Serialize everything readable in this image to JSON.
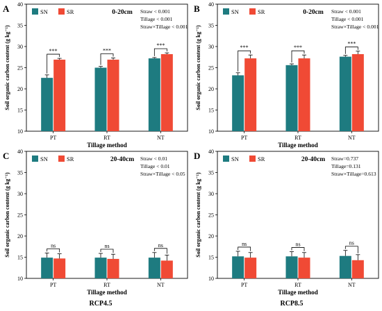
{
  "figure": {
    "footer_left": "RCP4.5",
    "footer_right": "RCP8.5"
  },
  "colors": {
    "SN": "#1e7b80",
    "SR": "#f04a35"
  },
  "chart_data": [
    {
      "panel": "A",
      "type": "bar",
      "depth_label": "0-20cm",
      "stats": [
        "Straw < 0.001",
        "Tillage < 0.001",
        "Straw×Tillage < 0.001"
      ],
      "categories": [
        "PT",
        "RT",
        "NT"
      ],
      "series": [
        {
          "name": "SN",
          "values": [
            22.6,
            25.0,
            27.2
          ],
          "errors": [
            0.7,
            0.3,
            0.2
          ]
        },
        {
          "name": "SR",
          "values": [
            26.9,
            26.9,
            28.2
          ],
          "errors": [
            0.3,
            0.4,
            0.3
          ]
        }
      ],
      "significance": [
        "***",
        "***",
        "***"
      ],
      "xlabel": "Tillage method",
      "ylabel": "Soil organic carbon content (g kg⁻¹)",
      "ylim": [
        10,
        40
      ],
      "yticks": [
        10,
        15,
        20,
        25,
        30,
        35,
        40
      ],
      "legend": "top-left",
      "grid": false
    },
    {
      "panel": "B",
      "type": "bar",
      "depth_label": "0-20cm",
      "stats": [
        "Straw < 0.001",
        "Tillage < 0.001",
        "Straw×Tillage < 0.001"
      ],
      "categories": [
        "PT",
        "RT",
        "NT"
      ],
      "series": [
        {
          "name": "SN",
          "values": [
            23.2,
            25.6,
            27.6
          ],
          "errors": [
            0.6,
            0.3,
            0.3
          ]
        },
        {
          "name": "SR",
          "values": [
            27.2,
            27.2,
            28.2
          ],
          "errors": [
            0.8,
            0.8,
            0.7
          ]
        }
      ],
      "significance": [
        "***",
        "***",
        "***"
      ],
      "xlabel": "Tillage method",
      "ylabel": "Soil organic carbon content (g kg⁻¹)",
      "ylim": [
        10,
        40
      ],
      "yticks": [
        10,
        15,
        20,
        25,
        30,
        35,
        40
      ],
      "legend": "top-left",
      "grid": false
    },
    {
      "panel": "C",
      "type": "bar",
      "depth_label": "20-40cm",
      "stats": [
        "Straw < 0.01",
        "Tillage < 0.01",
        "Straw×Tillage < 0.05"
      ],
      "categories": [
        "PT",
        "RT",
        "NT"
      ],
      "series": [
        {
          "name": "SN",
          "values": [
            14.9,
            14.9,
            14.9
          ],
          "errors": [
            1.1,
            1.0,
            1.2
          ]
        },
        {
          "name": "SR",
          "values": [
            14.7,
            14.6,
            14.2
          ],
          "errors": [
            1.1,
            1.1,
            1.3
          ]
        }
      ],
      "significance": [
        "ns",
        "ns",
        "ns"
      ],
      "xlabel": "Tillage method",
      "ylabel": "Soil organic carbon content (g kg⁻¹)",
      "ylim": [
        10,
        40
      ],
      "yticks": [
        10,
        15,
        20,
        25,
        30,
        35,
        40
      ],
      "legend": "top-left",
      "grid": false
    },
    {
      "panel": "D",
      "type": "bar",
      "depth_label": "20-40cm",
      "stats": [
        "Straw=0.737",
        "Tillage=0.131",
        "Straw×Tillage=0.613"
      ],
      "categories": [
        "PT",
        "RT",
        "NT"
      ],
      "series": [
        {
          "name": "SN",
          "values": [
            15.2,
            15.2,
            15.3
          ],
          "errors": [
            1.2,
            1.1,
            1.3
          ]
        },
        {
          "name": "SR",
          "values": [
            14.9,
            14.9,
            14.3
          ],
          "errors": [
            1.2,
            1.2,
            1.3
          ]
        }
      ],
      "significance": [
        "ns",
        "ns",
        "ns"
      ],
      "xlabel": "Tillage method",
      "ylabel": "Soil organic carbon content (g kg⁻¹)",
      "ylim": [
        10,
        40
      ],
      "yticks": [
        10,
        15,
        20,
        25,
        30,
        35,
        40
      ],
      "legend": "top-left",
      "grid": false
    }
  ]
}
